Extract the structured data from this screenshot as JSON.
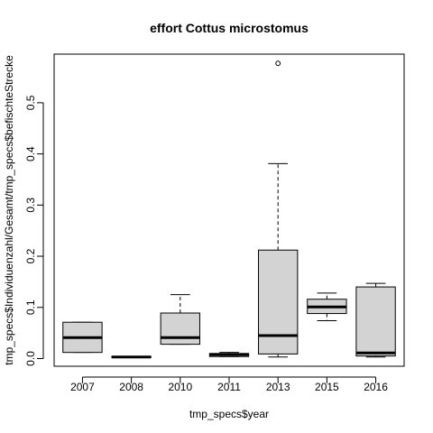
{
  "chart_data": {
    "type": "boxplot",
    "title": "effort Cottus microstomus",
    "xlabel": "tmp_specs$year",
    "ylabel": "tmp_specs$Individuenzahl/Gesamt/tmp_specs$befischteStrecke",
    "ylim": [
      -0.015,
      0.595
    ],
    "yticks": [
      0.0,
      0.1,
      0.2,
      0.3,
      0.4,
      0.5
    ],
    "ytick_labels": [
      "0.0",
      "0.1",
      "0.2",
      "0.3",
      "0.4",
      "0.5"
    ],
    "categories": [
      "2007",
      "2008",
      "2010",
      "2011",
      "2013",
      "2015",
      "2016"
    ],
    "boxes": [
      {
        "category": "2007",
        "whisker_low": 0.012,
        "q1": 0.012,
        "median": 0.041,
        "q3": 0.071,
        "whisker_high": 0.071,
        "outliers": []
      },
      {
        "category": "2008",
        "whisker_low": 0.002,
        "q1": 0.002,
        "median": 0.003,
        "q3": 0.004,
        "whisker_high": 0.004,
        "outliers": []
      },
      {
        "category": "2010",
        "whisker_low": 0.028,
        "q1": 0.028,
        "median": 0.041,
        "q3": 0.089,
        "whisker_high": 0.125,
        "outliers": []
      },
      {
        "category": "2011",
        "whisker_low": 0.004,
        "q1": 0.004,
        "median": 0.008,
        "q3": 0.01,
        "whisker_high": 0.012,
        "outliers": []
      },
      {
        "category": "2013",
        "whisker_low": 0.003,
        "q1": 0.009,
        "median": 0.045,
        "q3": 0.212,
        "whisker_high": 0.381,
        "outliers": [
          0.577
        ]
      },
      {
        "category": "2015",
        "whisker_low": 0.074,
        "q1": 0.088,
        "median": 0.101,
        "q3": 0.116,
        "whisker_high": 0.128,
        "outliers": []
      },
      {
        "category": "2016",
        "whisker_low": 0.003,
        "q1": 0.005,
        "median": 0.011,
        "q3": 0.14,
        "whisker_high": 0.147,
        "outliers": []
      }
    ],
    "box_fill": "#d3d3d3",
    "line_color": "#000000",
    "grid": false,
    "legend": "none"
  }
}
